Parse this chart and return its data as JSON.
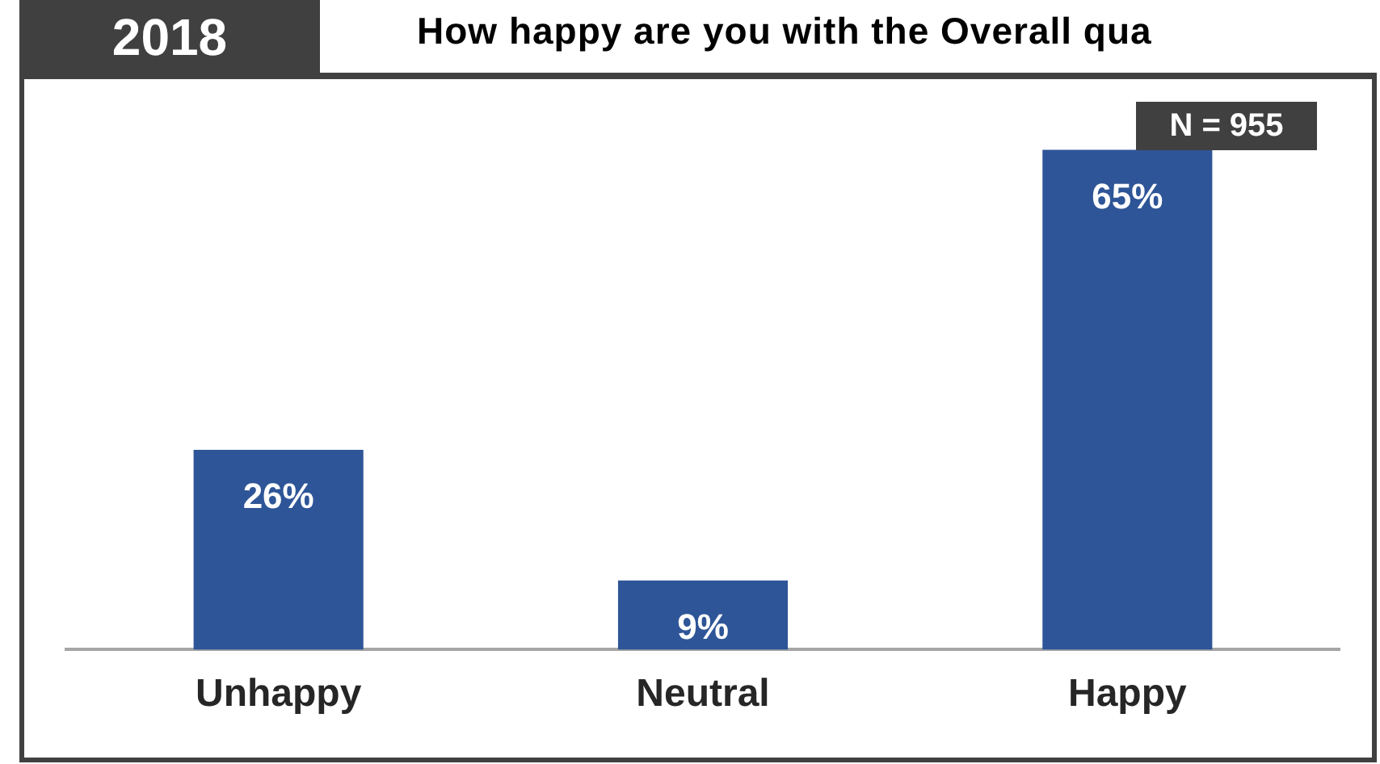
{
  "chart_data": {
    "type": "bar",
    "title": "How happy are you with the Overall qua",
    "subtitle": "2018",
    "categories": [
      "Unhappy",
      "Neutral",
      "Happy"
    ],
    "values": [
      26,
      9,
      65
    ],
    "color": "#2e5597",
    "value_labels": [
      "26%",
      "9%",
      "65%"
    ],
    "annotations": [
      "N = 955"
    ],
    "grid": false,
    "legend": false
  }
}
